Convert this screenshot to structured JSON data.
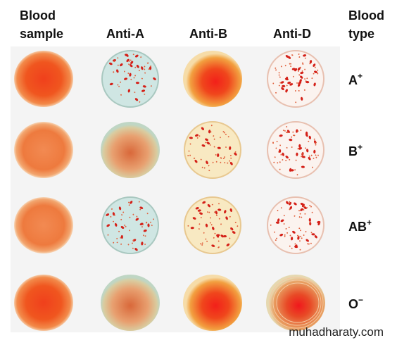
{
  "columns": [
    {
      "lines": [
        "Blood",
        "sample"
      ]
    },
    {
      "lines": [
        "Anti-A"
      ]
    },
    {
      "lines": [
        "Anti-B"
      ]
    },
    {
      "lines": [
        "Anti-D"
      ]
    },
    {
      "lines": [
        "Blood",
        "type"
      ]
    }
  ],
  "rows": [
    {
      "group": "A",
      "rh": "+"
    },
    {
      "group": "B",
      "rh": "+"
    },
    {
      "group": "AB",
      "rh": "+"
    },
    {
      "group": "O",
      "rh": "−"
    }
  ],
  "watermark": "muhadharaty.com"
}
